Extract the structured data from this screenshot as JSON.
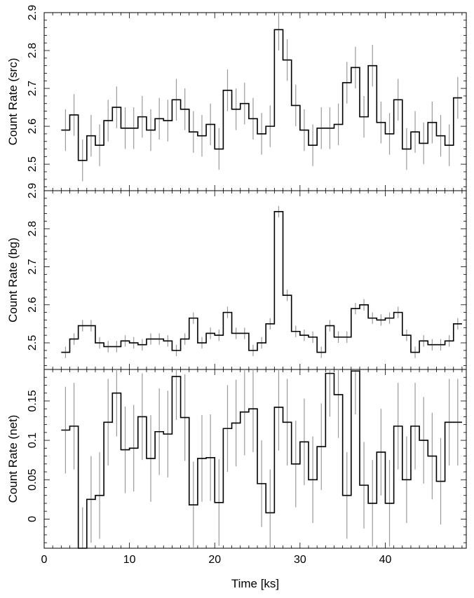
{
  "chart_data": [
    {
      "type": "line",
      "step": true,
      "ylabel": "Count Rate (src)",
      "ylim": [
        2.43,
        2.9
      ],
      "yticks": [
        2.5,
        2.6,
        2.7,
        2.8,
        2.9
      ],
      "x": [
        2,
        3,
        4,
        5,
        6,
        7,
        8,
        9,
        10,
        11,
        12,
        13,
        14,
        15,
        16,
        17,
        18,
        19,
        20,
        21,
        22,
        23,
        24,
        25,
        26,
        27,
        28,
        29,
        30,
        31,
        32,
        33,
        34,
        35,
        36,
        37,
        38,
        39,
        40,
        41,
        42,
        43,
        44,
        45,
        46,
        47,
        48
      ],
      "y": [
        2.59,
        2.63,
        2.51,
        2.575,
        2.55,
        2.615,
        2.65,
        2.595,
        2.595,
        2.625,
        2.59,
        2.62,
        2.615,
        2.67,
        2.645,
        2.585,
        2.575,
        2.605,
        2.54,
        2.695,
        2.645,
        2.66,
        2.62,
        2.58,
        2.6,
        2.855,
        2.775,
        2.655,
        2.59,
        2.55,
        2.595,
        2.595,
        2.605,
        2.715,
        2.755,
        2.625,
        2.76,
        2.61,
        2.58,
        2.67,
        2.54,
        2.585,
        2.555,
        2.61,
        2.575,
        2.55,
        2.675
      ],
      "yerr": 0.055
    },
    {
      "type": "line",
      "step": true,
      "ylabel": "Count Rate (bg)",
      "ylim": [
        2.43,
        2.9
      ],
      "yticks": [
        2.5,
        2.6,
        2.7,
        2.8,
        2.9
      ],
      "x": [
        2,
        3,
        4,
        5,
        6,
        7,
        8,
        9,
        10,
        11,
        12,
        13,
        14,
        15,
        16,
        17,
        18,
        19,
        20,
        21,
        22,
        23,
        24,
        25,
        26,
        27,
        28,
        29,
        30,
        31,
        32,
        33,
        34,
        35,
        36,
        37,
        38,
        39,
        40,
        41,
        42,
        43,
        44,
        45,
        46,
        47,
        48
      ],
      "y": [
        2.475,
        2.51,
        2.545,
        2.545,
        2.5,
        2.49,
        2.49,
        2.505,
        2.5,
        2.495,
        2.51,
        2.51,
        2.505,
        2.48,
        2.51,
        2.565,
        2.5,
        2.525,
        2.52,
        2.58,
        2.525,
        2.525,
        2.48,
        2.5,
        2.55,
        2.845,
        2.625,
        2.53,
        2.52,
        2.515,
        2.475,
        2.545,
        2.515,
        2.515,
        2.59,
        2.6,
        2.565,
        2.56,
        2.565,
        2.58,
        2.52,
        2.475,
        2.505,
        2.495,
        2.495,
        2.505,
        2.55
      ],
      "yerr": 0.015
    },
    {
      "type": "line",
      "step": true,
      "xlabel": "Time [ks]",
      "ylabel": "Count Rate (net)",
      "xlim": [
        0,
        49.5
      ],
      "ylim": [
        -0.037,
        0.19
      ],
      "xticks": [
        0,
        10,
        20,
        30,
        40
      ],
      "yticks": [
        0,
        0.05,
        0.1,
        0.15
      ],
      "x": [
        2,
        3,
        4,
        5,
        6,
        7,
        8,
        9,
        10,
        11,
        12,
        13,
        14,
        15,
        16,
        17,
        18,
        19,
        20,
        21,
        22,
        23,
        24,
        25,
        26,
        27,
        28,
        29,
        30,
        31,
        32,
        33,
        34,
        35,
        36,
        37,
        38,
        39,
        40,
        41,
        42,
        43,
        44,
        45,
        46,
        47,
        48
      ],
      "y": [
        0.113,
        0.118,
        -0.04,
        0.025,
        0.03,
        0.123,
        0.16,
        0.088,
        0.09,
        0.13,
        0.077,
        0.111,
        0.108,
        0.181,
        0.129,
        0.018,
        0.077,
        0.078,
        0.021,
        0.115,
        0.122,
        0.136,
        0.14,
        0.045,
        0.008,
        0.142,
        0.123,
        0.07,
        0.098,
        0.05,
        0.092,
        0.185,
        0.158,
        0.03,
        0.188,
        0.043,
        0.02,
        0.085,
        0.02,
        0.118,
        0.05,
        0.118,
        0.1,
        0.08,
        0.048,
        0.123,
        0.123
      ],
      "yerr": 0.055
    }
  ]
}
